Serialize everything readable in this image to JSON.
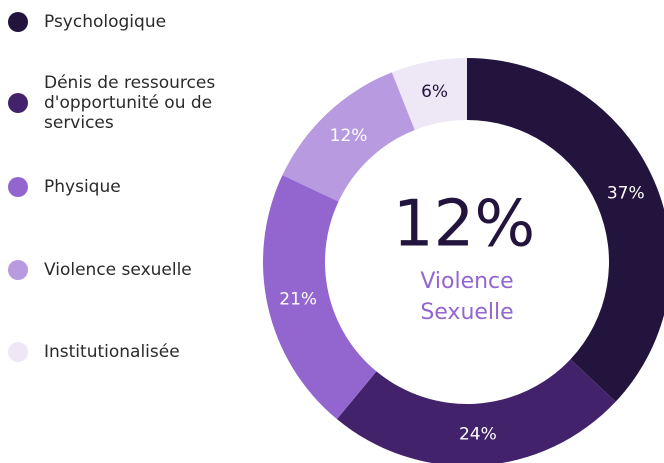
{
  "chart_data": {
    "type": "donut",
    "categories": [
      "Psychologique",
      "Dénis de ressources d'opportunité ou de services",
      "Physique",
      "Violence sexuelle",
      "Institutionalisée"
    ],
    "values": [
      37,
      24,
      21,
      12,
      6
    ],
    "value_labels": [
      "37%",
      "24%",
      "21%",
      "12%",
      "6%"
    ],
    "colors": [
      "#23143d",
      "#42236b",
      "#9366cf",
      "#b89ae0",
      "#ede7f6"
    ],
    "legend": "left",
    "center_value": "12%",
    "center_caption": "Violence Sexuelle"
  }
}
